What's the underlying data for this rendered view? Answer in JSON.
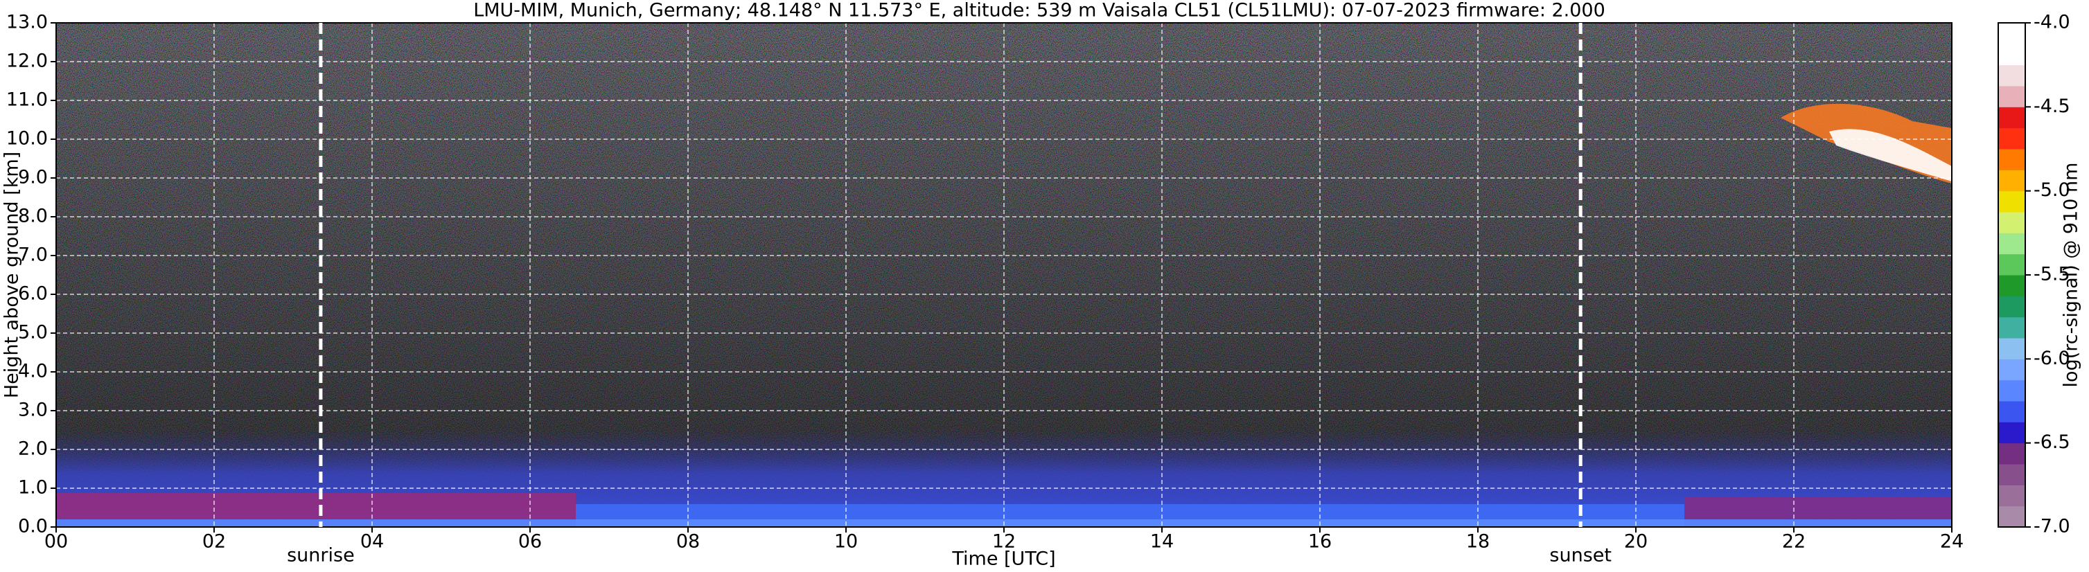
{
  "chart_data": {
    "type": "heatmap",
    "title": "LMU-MIM, Munich, Germany; 48.148° N 11.573° E, altitude: 539 m    Vaisala CL51 (CL51LMU): 07-07-2023    firmware: 2.000",
    "x_label": "Time [UTC]",
    "y_label": "Height above ground [km]",
    "xlim": [
      0,
      24
    ],
    "xticks": [
      {
        "value": 0,
        "label": "00"
      },
      {
        "value": 2,
        "label": "02"
      },
      {
        "value": 4,
        "label": "04"
      },
      {
        "value": 6,
        "label": "06"
      },
      {
        "value": 8,
        "label": "08"
      },
      {
        "value": 10,
        "label": "10"
      },
      {
        "value": 12,
        "label": "12"
      },
      {
        "value": 14,
        "label": "14"
      },
      {
        "value": 16,
        "label": "16"
      },
      {
        "value": 18,
        "label": "18"
      },
      {
        "value": 20,
        "label": "20"
      },
      {
        "value": 22,
        "label": "22"
      },
      {
        "value": 24,
        "label": "24"
      }
    ],
    "ylim": [
      0,
      13
    ],
    "yticks": [
      {
        "value": 0,
        "label": "0.0"
      },
      {
        "value": 1,
        "label": "1.0"
      },
      {
        "value": 2,
        "label": "2.0"
      },
      {
        "value": 3,
        "label": "3.0"
      },
      {
        "value": 4,
        "label": "4.0"
      },
      {
        "value": 5,
        "label": "5.0"
      },
      {
        "value": 6,
        "label": "6.0"
      },
      {
        "value": 7,
        "label": "7.0"
      },
      {
        "value": 8,
        "label": "8.0"
      },
      {
        "value": 9,
        "label": "9.0"
      },
      {
        "value": 10,
        "label": "10.0"
      },
      {
        "value": 11,
        "label": "11.0"
      },
      {
        "value": 12,
        "label": "12.0"
      },
      {
        "value": 13,
        "label": "13.0"
      }
    ],
    "grid": true,
    "annotations": [
      {
        "label": "sunrise",
        "x": 3.35
      },
      {
        "label": "sunset",
        "x": 19.3
      }
    ],
    "colorbar": {
      "label": "log(rc-signal) @ 910 nm",
      "lim": [
        -7,
        -4
      ],
      "ticks": [
        {
          "value": -7,
          "label": "-7.0"
        },
        {
          "value": -6.5,
          "label": "-6.5"
        },
        {
          "value": -6,
          "label": "-6.0"
        },
        {
          "value": -5.5,
          "label": "-5.5"
        },
        {
          "value": -5,
          "label": "-5.0"
        },
        {
          "value": -4.5,
          "label": "-4.5"
        },
        {
          "value": -4,
          "label": "-4.0"
        }
      ],
      "colors": [
        "#a98ba9",
        "#9a6f9a",
        "#874f8c",
        "#742e82",
        "#2a1acc",
        "#3a55f0",
        "#5a86ff",
        "#7aa6ff",
        "#8cc0f0",
        "#40b0a0",
        "#1c9a60",
        "#1f9a2a",
        "#5cc85c",
        "#9ee88e",
        "#d4f070",
        "#f0e000",
        "#ffb000",
        "#ff7a00",
        "#ff3010",
        "#e81818",
        "#e8b0b8",
        "#f2dde0",
        "#ffffff",
        "#ffffff"
      ]
    }
  }
}
